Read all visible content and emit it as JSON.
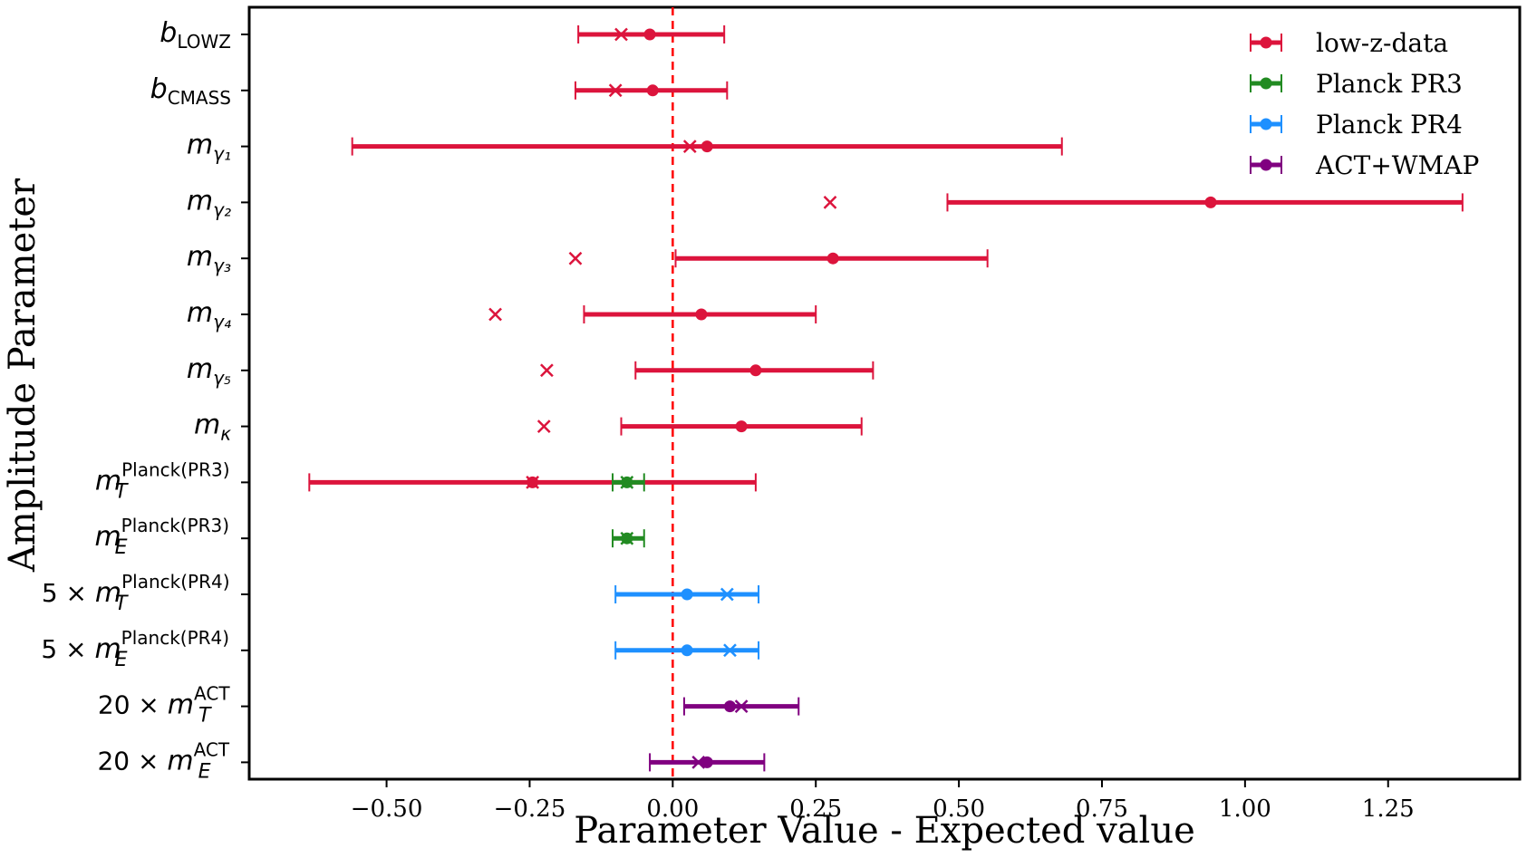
{
  "chart_data": {
    "type": "errorbar",
    "title": "",
    "xlabel": "Parameter Value - Expected value",
    "ylabel": "Amplitude Parameter",
    "xlim": [
      -0.74,
      1.48
    ],
    "xticks": [
      -0.5,
      -0.25,
      0.0,
      0.25,
      0.5,
      0.75,
      1.0,
      1.25
    ],
    "xtick_labels": [
      "−0.50",
      "−0.25",
      "0.00",
      "0.25",
      "0.50",
      "0.75",
      "1.00",
      "1.25"
    ],
    "reference_line": {
      "x": 0.0,
      "style": "dashed",
      "color": "#ff0000"
    },
    "legend_position": "top-right",
    "series": [
      {
        "name": "low-z-data",
        "color": "#dc143c"
      },
      {
        "name": "Planck PR3",
        "color": "#228b22"
      },
      {
        "name": "Planck PR4",
        "color": "#1e90ff"
      },
      {
        "name": "ACT+WMAP",
        "color": "#800080"
      }
    ],
    "categories": [
      {
        "base": "b",
        "sub": "LOWZ",
        "sup": "",
        "prefix": ""
      },
      {
        "base": "b",
        "sub": "CMASS",
        "sup": "",
        "prefix": ""
      },
      {
        "base": "m",
        "sub": "γ₁",
        "sup": "",
        "prefix": ""
      },
      {
        "base": "m",
        "sub": "γ₂",
        "sup": "",
        "prefix": ""
      },
      {
        "base": "m",
        "sub": "γ₃",
        "sup": "",
        "prefix": ""
      },
      {
        "base": "m",
        "sub": "γ₄",
        "sup": "",
        "prefix": ""
      },
      {
        "base": "m",
        "sub": "γ₅",
        "sup": "",
        "prefix": ""
      },
      {
        "base": "m",
        "sub": "κ",
        "sup": "",
        "prefix": ""
      },
      {
        "base": "m",
        "sub": "T",
        "sup": "Planck(PR3)",
        "prefix": ""
      },
      {
        "base": "m",
        "sub": "E",
        "sup": "Planck(PR3)",
        "prefix": ""
      },
      {
        "base": "m",
        "sub": "T",
        "sup": "Planck(PR4)",
        "prefix": "5 × "
      },
      {
        "base": "m",
        "sub": "E",
        "sup": "Planck(PR4)",
        "prefix": "5 × "
      },
      {
        "base": "m",
        "sub": "T",
        "sup": "ACT",
        "prefix": "20 × "
      },
      {
        "base": "m",
        "sub": "E",
        "sup": "ACT",
        "prefix": "20 × "
      }
    ],
    "points": [
      {
        "row": 0,
        "series": 0,
        "value": -0.04,
        "lo": -0.165,
        "hi": 0.09,
        "expected_marker": -0.09
      },
      {
        "row": 1,
        "series": 0,
        "value": -0.035,
        "lo": -0.17,
        "hi": 0.095,
        "expected_marker": -0.1
      },
      {
        "row": 2,
        "series": 0,
        "value": 0.06,
        "lo": -0.56,
        "hi": 0.68,
        "expected_marker": 0.03
      },
      {
        "row": 3,
        "series": 0,
        "value": 0.94,
        "lo": 0.48,
        "hi": 1.38,
        "expected_marker": 0.275
      },
      {
        "row": 4,
        "series": 0,
        "value": 0.28,
        "lo": 0.005,
        "hi": 0.55,
        "expected_marker": -0.17
      },
      {
        "row": 5,
        "series": 0,
        "value": 0.05,
        "lo": -0.155,
        "hi": 0.25,
        "expected_marker": -0.31
      },
      {
        "row": 6,
        "series": 0,
        "value": 0.145,
        "lo": -0.065,
        "hi": 0.35,
        "expected_marker": -0.22
      },
      {
        "row": 7,
        "series": 0,
        "value": 0.12,
        "lo": -0.09,
        "hi": 0.33,
        "expected_marker": -0.225
      },
      {
        "row": 8,
        "series": 0,
        "value": -0.245,
        "lo": -0.635,
        "hi": 0.145,
        "expected_marker": -0.245
      },
      {
        "row": 8,
        "series": 1,
        "value": -0.08,
        "lo": -0.105,
        "hi": -0.05,
        "expected_marker": -0.08
      },
      {
        "row": 9,
        "series": 1,
        "value": -0.08,
        "lo": -0.105,
        "hi": -0.05,
        "expected_marker": -0.08
      },
      {
        "row": 10,
        "series": 2,
        "value": 0.025,
        "lo": -0.1,
        "hi": 0.15,
        "expected_marker": 0.095
      },
      {
        "row": 11,
        "series": 2,
        "value": 0.025,
        "lo": -0.1,
        "hi": 0.15,
        "expected_marker": 0.1
      },
      {
        "row": 12,
        "series": 3,
        "value": 0.1,
        "lo": 0.02,
        "hi": 0.22,
        "expected_marker": 0.12
      },
      {
        "row": 13,
        "series": 3,
        "value": 0.06,
        "lo": -0.04,
        "hi": 0.16,
        "expected_marker": 0.045
      }
    ]
  }
}
